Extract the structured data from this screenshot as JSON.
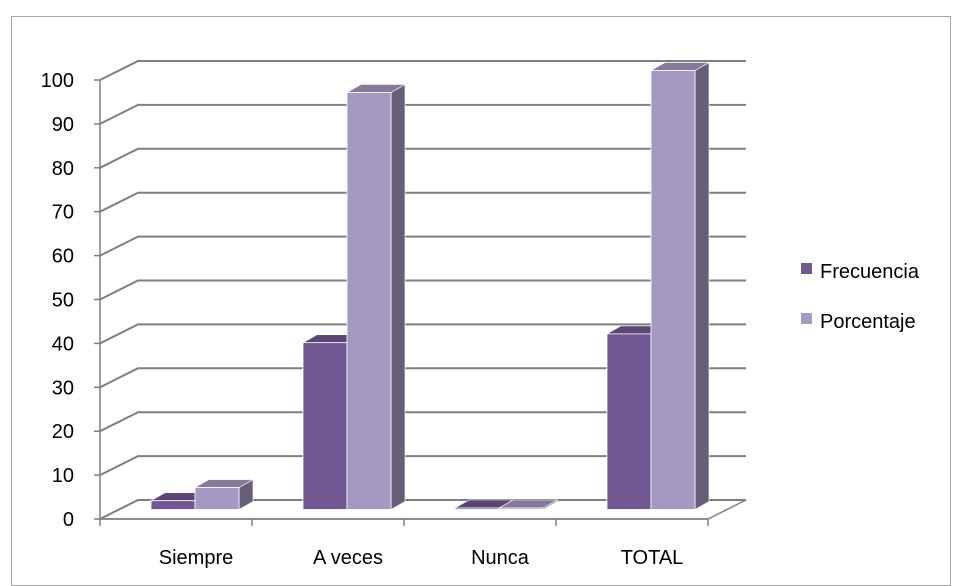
{
  "chart_data": {
    "type": "bar",
    "variant": "3d-clustered-column",
    "categories": [
      "Siempre",
      "A veces",
      "Nunca",
      "TOTAL"
    ],
    "series": [
      {
        "name": "Frecuencia",
        "values": [
          2,
          38,
          0,
          40
        ],
        "color": "#725892"
      },
      {
        "name": "Porcentaje",
        "values": [
          5,
          95,
          0,
          100
        ],
        "color": "#a699c1"
      }
    ],
    "yticks": [
      0,
      10,
      20,
      30,
      40,
      50,
      60,
      70,
      80,
      90,
      100
    ],
    "ylim": [
      0,
      100
    ],
    "grid": true,
    "legend_position": "right"
  }
}
